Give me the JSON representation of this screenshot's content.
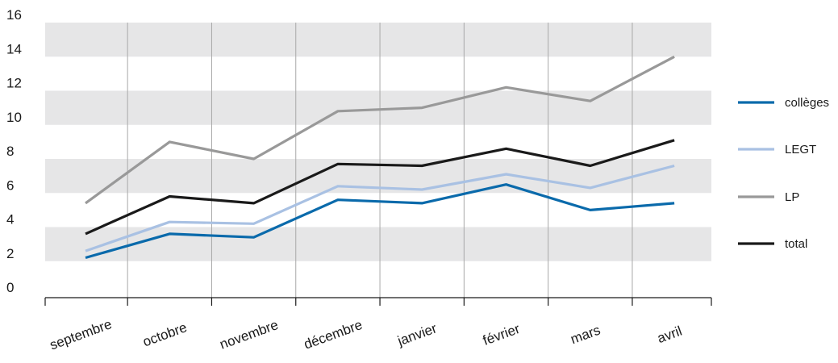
{
  "chart_data": {
    "type": "line",
    "title": "",
    "xlabel": "",
    "ylabel": "",
    "categories": [
      "septembre",
      "octobre",
      "novembre",
      "décembre",
      "janvier",
      "février",
      "mars",
      "avril"
    ],
    "ylim": [
      0,
      16
    ],
    "yticks": [
      0,
      2,
      4,
      6,
      8,
      10,
      12,
      14,
      16
    ],
    "ytick_labels": [
      "0",
      "2",
      "4",
      "6",
      "8",
      "10",
      "12",
      "14",
      "16"
    ],
    "grid": "horizontal alternating bands",
    "band_color": "#e6e6e7",
    "legend_position": "right",
    "series": [
      {
        "name": "collèges",
        "color": "#0a6aab",
        "values": [
          2.2,
          3.6,
          3.4,
          5.6,
          5.4,
          6.5,
          5.0,
          5.4
        ]
      },
      {
        "name": "LEGT",
        "color": "#a9c1e3",
        "values": [
          2.6,
          4.3,
          4.2,
          6.4,
          6.2,
          7.1,
          6.3,
          7.6
        ]
      },
      {
        "name": "LP",
        "color": "#999999",
        "values": [
          5.4,
          9.0,
          8.0,
          10.8,
          11.0,
          12.2,
          11.4,
          14.0
        ]
      },
      {
        "name": "total",
        "color": "#1a1a1a",
        "values": [
          3.6,
          5.8,
          5.4,
          7.7,
          7.6,
          8.6,
          7.6,
          9.1
        ]
      }
    ]
  }
}
